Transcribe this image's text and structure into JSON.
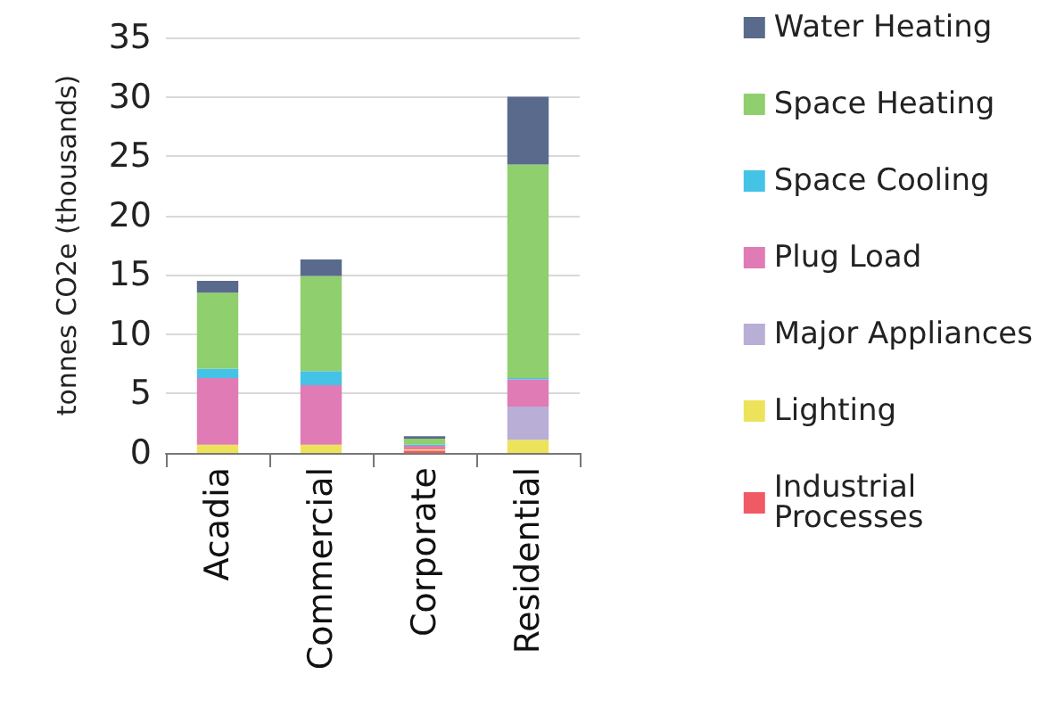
{
  "chart_data": {
    "type": "bar",
    "stacked": true,
    "ylabel": "tonnes CO2e (thousands)",
    "categories": [
      "Acadia",
      "Commercial",
      "Corporate",
      "Residential"
    ],
    "series": [
      {
        "name": "Industrial Processes",
        "color": "#f05a64",
        "values": [
          0,
          0,
          0.2,
          0
        ]
      },
      {
        "name": "Lighting",
        "color": "#ede35a",
        "values": [
          0.7,
          0.7,
          0.1,
          1.1
        ]
      },
      {
        "name": "Major Appliances",
        "color": "#b8aed6",
        "values": [
          0,
          0,
          0,
          2.8
        ]
      },
      {
        "name": "Plug Load",
        "color": "#e07bb5",
        "values": [
          5.6,
          5,
          0.3,
          2.3
        ]
      },
      {
        "name": "Space Cooling",
        "color": "#45c3e6",
        "values": [
          0.8,
          1.2,
          0.1,
          0.1
        ]
      },
      {
        "name": "Space Heating",
        "color": "#8fcf6e",
        "values": [
          6.4,
          8,
          0.5,
          18
        ]
      },
      {
        "name": "Water Heating",
        "color": "#5a6a8c",
        "values": [
          1,
          1.4,
          0.2,
          5.7
        ]
      }
    ],
    "ylim": [
      0,
      35
    ],
    "yticks": [
      0,
      5,
      10,
      15,
      20,
      25,
      30,
      35
    ],
    "grid": "y",
    "legend": "right"
  }
}
